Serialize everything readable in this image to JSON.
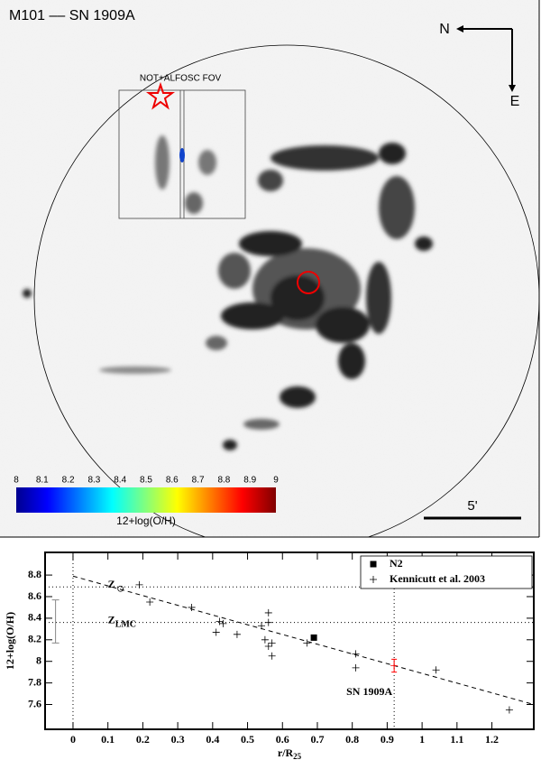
{
  "image_panel": {
    "title": "M101 –– SN 1909A",
    "compass": {
      "north": "N",
      "east": "E"
    },
    "fov_label": "NOT+ALFOSC FOV",
    "scale_bar": "5'",
    "colorbar": {
      "label": "12+log(O/H)",
      "lim": [
        8,
        9
      ],
      "ticks": [
        8,
        8.1,
        8.2,
        8.3,
        8.4,
        8.5,
        8.6,
        8.7,
        8.8,
        8.9,
        9
      ]
    }
  },
  "chart_data": {
    "type": "scatter",
    "xlabel": {
      "text": "r/R",
      "subscript": "25"
    },
    "ylabel": "12+log(O/H)",
    "xlim": [
      -0.08,
      1.32
    ],
    "ylim": [
      7.37,
      9.01
    ],
    "xticks": [
      0,
      0.1,
      0.2,
      0.3,
      0.4,
      0.5,
      0.6,
      0.7,
      0.8,
      0.9,
      1,
      1.1,
      1.2
    ],
    "yticks": [
      7.6,
      7.8,
      8,
      8.2,
      8.4,
      8.6,
      8.8
    ],
    "legend": "upper right",
    "series": [
      {
        "name": "N2",
        "color": "#000000",
        "marker": "square",
        "x": [
          0.69
        ],
        "values": [
          8.22
        ]
      },
      {
        "name": "Kennicutt et al. 2003",
        "color": "#000000",
        "marker": "plus",
        "x": [
          0.19,
          0.22,
          0.34,
          0.41,
          0.42,
          0.43,
          0.47,
          0.54,
          0.55,
          0.56,
          0.56,
          0.56,
          0.57,
          0.57,
          0.67,
          0.81,
          0.81,
          1.04,
          1.25
        ],
        "values": [
          8.71,
          8.55,
          8.5,
          8.27,
          8.37,
          8.35,
          8.25,
          8.33,
          8.2,
          8.45,
          8.36,
          8.14,
          8.17,
          8.05,
          8.17,
          8.07,
          7.94,
          7.92,
          7.55
        ]
      }
    ],
    "sn": {
      "label": "SN 1909A",
      "x": 0.92,
      "value": 7.96,
      "error": 0.06,
      "color": "#ff0000"
    },
    "fit": {
      "x": [
        0,
        1.32
      ],
      "values": [
        8.79,
        7.6
      ]
    },
    "reference_lines": [
      {
        "value": 8.69,
        "label": "Z"
      },
      {
        "value": 8.36,
        "label": "Z",
        "subscript": "LMC"
      }
    ],
    "typical_error": {
      "x": -0.05,
      "value": 8.37,
      "error": 0.2
    }
  }
}
